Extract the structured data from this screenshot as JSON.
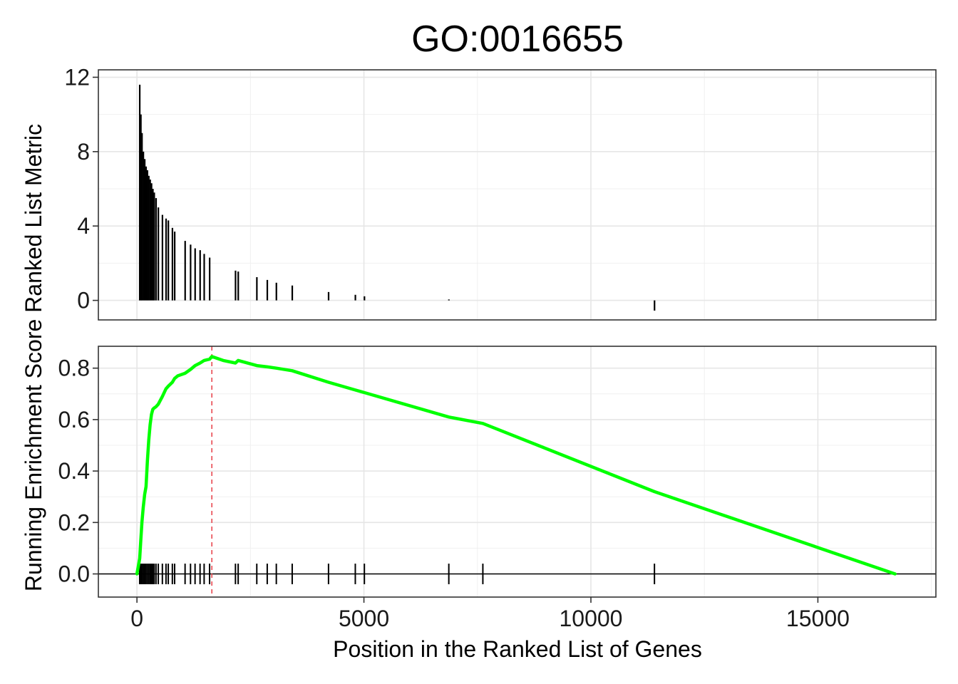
{
  "chart_data": {
    "type": "line",
    "title": "GO:0016655",
    "xlabel": "Position in the Ranked List of Genes",
    "ylabel": "Running Enrichment Score Ranked List Metric",
    "x_ticks": [
      "0",
      "5000",
      "10000",
      "15000"
    ],
    "xlim": [
      -850,
      17600
    ],
    "panels": [
      {
        "name": "ranked-list-metric",
        "type": "bar",
        "ylim": [
          -1.05,
          12.4
        ],
        "y_ticks": [
          "0",
          "4",
          "8",
          "12"
        ],
        "bars": [
          {
            "x": 60,
            "y": 11.6
          },
          {
            "x": 85,
            "y": 10.0
          },
          {
            "x": 110,
            "y": 9.0
          },
          {
            "x": 140,
            "y": 8.0
          },
          {
            "x": 170,
            "y": 7.6
          },
          {
            "x": 200,
            "y": 7.2
          },
          {
            "x": 230,
            "y": 7.0
          },
          {
            "x": 260,
            "y": 6.7
          },
          {
            "x": 290,
            "y": 6.5
          },
          {
            "x": 320,
            "y": 6.3
          },
          {
            "x": 350,
            "y": 6.0
          },
          {
            "x": 380,
            "y": 5.8
          },
          {
            "x": 420,
            "y": 5.5
          },
          {
            "x": 470,
            "y": 5.0
          },
          {
            "x": 560,
            "y": 4.6
          },
          {
            "x": 640,
            "y": 4.4
          },
          {
            "x": 690,
            "y": 4.3
          },
          {
            "x": 780,
            "y": 3.9
          },
          {
            "x": 830,
            "y": 3.7
          },
          {
            "x": 1060,
            "y": 3.2
          },
          {
            "x": 1180,
            "y": 3.0
          },
          {
            "x": 1280,
            "y": 2.8
          },
          {
            "x": 1390,
            "y": 2.7
          },
          {
            "x": 1480,
            "y": 2.5
          },
          {
            "x": 1600,
            "y": 2.3
          },
          {
            "x": 2170,
            "y": 1.6
          },
          {
            "x": 2230,
            "y": 1.55
          },
          {
            "x": 2640,
            "y": 1.25
          },
          {
            "x": 2870,
            "y": 1.1
          },
          {
            "x": 3070,
            "y": 0.95
          },
          {
            "x": 3420,
            "y": 0.8
          },
          {
            "x": 4220,
            "y": 0.45
          },
          {
            "x": 4810,
            "y": 0.3
          },
          {
            "x": 5010,
            "y": 0.22
          },
          {
            "x": 6870,
            "y": 0.05
          },
          {
            "x": 11400,
            "y": -0.55
          }
        ]
      },
      {
        "name": "running-enrichment-score",
        "type": "line",
        "ylim": [
          -0.09,
          0.885
        ],
        "y_ticks": [
          "0.0",
          "0.2",
          "0.4",
          "0.6",
          "0.8"
        ],
        "color": "#00FF00",
        "es_peak_x": 1650,
        "es_peak_color": "#E8474F",
        "series": {
          "x": [
            0,
            60,
            85,
            110,
            140,
            170,
            200,
            230,
            260,
            290,
            320,
            350,
            380,
            420,
            470,
            560,
            640,
            690,
            780,
            830,
            900,
            1060,
            1180,
            1280,
            1390,
            1480,
            1600,
            1650,
            1900,
            2170,
            2230,
            2640,
            2870,
            3070,
            3420,
            4220,
            4810,
            5010,
            6870,
            7620,
            11400,
            16700
          ],
          "y": [
            0.0,
            0.06,
            0.13,
            0.2,
            0.26,
            0.31,
            0.34,
            0.44,
            0.52,
            0.58,
            0.62,
            0.64,
            0.645,
            0.65,
            0.66,
            0.69,
            0.72,
            0.73,
            0.745,
            0.76,
            0.77,
            0.78,
            0.795,
            0.81,
            0.82,
            0.83,
            0.835,
            0.845,
            0.83,
            0.82,
            0.83,
            0.81,
            0.805,
            0.8,
            0.79,
            0.745,
            0.715,
            0.705,
            0.61,
            0.585,
            0.32,
            0.0
          ]
        },
        "hit_ticks": [
          60,
          85,
          110,
          140,
          170,
          200,
          230,
          260,
          290,
          320,
          350,
          380,
          420,
          470,
          560,
          640,
          690,
          780,
          830,
          1060,
          1180,
          1280,
          1390,
          1480,
          1600,
          2170,
          2230,
          2640,
          2870,
          3070,
          3420,
          4220,
          4810,
          5010,
          6870,
          7620,
          11400
        ]
      }
    ]
  }
}
